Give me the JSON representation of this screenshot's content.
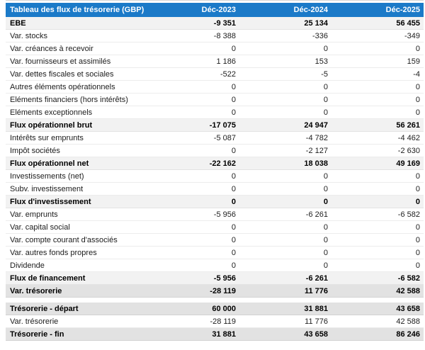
{
  "colors": {
    "header_bg": "#1b7ac8",
    "header_text": "#ffffff",
    "subtotal_bg": "#f2f2f2",
    "total_bg": "#e2e2e2"
  },
  "table": {
    "title": "Tableau des flux de trésorerie (GBP)",
    "columns": [
      "Déc-2023",
      "Déc-2024",
      "Déc-2025"
    ],
    "sections": [
      {
        "name": "flux",
        "rows": [
          {
            "label": "EBE",
            "values": [
              "-9 351",
              "25 134",
              "56 455"
            ],
            "style": "subtotal"
          },
          {
            "label": "Var. stocks",
            "values": [
              "-8 388",
              "-336",
              "-349"
            ],
            "style": "plain"
          },
          {
            "label": "Var. créances à recevoir",
            "values": [
              "0",
              "0",
              "0"
            ],
            "style": "plain"
          },
          {
            "label": "Var. fournisseurs et assimilés",
            "values": [
              "1 186",
              "153",
              "159"
            ],
            "style": "plain"
          },
          {
            "label": "Var. dettes fiscales et sociales",
            "values": [
              "-522",
              "-5",
              "-4"
            ],
            "style": "plain"
          },
          {
            "label": "Autres éléments opérationnels",
            "values": [
              "0",
              "0",
              "0"
            ],
            "style": "plain"
          },
          {
            "label": "Eléments financiers (hors intérêts)",
            "values": [
              "0",
              "0",
              "0"
            ],
            "style": "plain"
          },
          {
            "label": "Eléments exceptionnels",
            "values": [
              "0",
              "0",
              "0"
            ],
            "style": "plain"
          },
          {
            "label": "Flux opérationnel brut",
            "values": [
              "-17 075",
              "24 947",
              "56 261"
            ],
            "style": "subtotal"
          },
          {
            "label": "Intérêts sur emprunts",
            "values": [
              "-5 087",
              "-4 782",
              "-4 462"
            ],
            "style": "plain"
          },
          {
            "label": "Impôt sociétés",
            "values": [
              "0",
              "-2 127",
              "-2 630"
            ],
            "style": "plain"
          },
          {
            "label": "Flux opérationnel net",
            "values": [
              "-22 162",
              "18 038",
              "49 169"
            ],
            "style": "subtotal"
          },
          {
            "label": "Investissements (net)",
            "values": [
              "0",
              "0",
              "0"
            ],
            "style": "plain"
          },
          {
            "label": "Subv. investissement",
            "values": [
              "0",
              "0",
              "0"
            ],
            "style": "plain"
          },
          {
            "label": "Flux d'investissement",
            "values": [
              "0",
              "0",
              "0"
            ],
            "style": "subtotal"
          },
          {
            "label": "Var. emprunts",
            "values": [
              "-5 956",
              "-6 261",
              "-6 582"
            ],
            "style": "plain"
          },
          {
            "label": "Var. capital social",
            "values": [
              "0",
              "0",
              "0"
            ],
            "style": "plain"
          },
          {
            "label": "Var. compte courant d'associés",
            "values": [
              "0",
              "0",
              "0"
            ],
            "style": "plain"
          },
          {
            "label": "Var. autres fonds propres",
            "values": [
              "0",
              "0",
              "0"
            ],
            "style": "plain"
          },
          {
            "label": "Dividende",
            "values": [
              "0",
              "0",
              "0"
            ],
            "style": "plain"
          },
          {
            "label": "Flux de financement",
            "values": [
              "-5 956",
              "-6 261",
              "-6 582"
            ],
            "style": "subtotal"
          },
          {
            "label": "Var. trésorerie",
            "values": [
              "-28 119",
              "11 776",
              "42 588"
            ],
            "style": "total"
          }
        ]
      },
      {
        "name": "tresorerie",
        "rows": [
          {
            "label": "Trésorerie - départ",
            "values": [
              "60 000",
              "31 881",
              "43 658"
            ],
            "style": "total"
          },
          {
            "label": "Var. trésorerie",
            "values": [
              "-28 119",
              "11 776",
              "42 588"
            ],
            "style": "plain"
          },
          {
            "label": "Trésorerie - fin",
            "values": [
              "31 881",
              "43 658",
              "86 246"
            ],
            "style": "total"
          }
        ]
      }
    ]
  }
}
